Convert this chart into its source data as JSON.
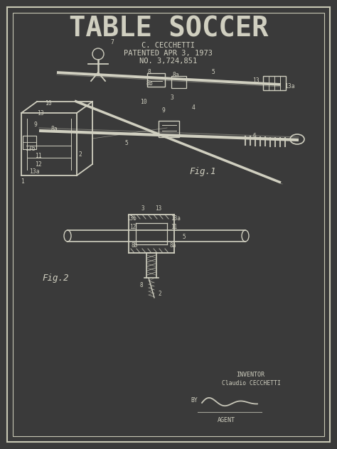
{
  "bg_color": "#3a3a3a",
  "border_color": "#c8c8b4",
  "line_color": "#d0cfc0",
  "title": "TABLE SOCCER",
  "inventor_line": "C. CECCHETTI",
  "patent_line": "PATENTED APR 3, 1973",
  "number_line": "NO. 3,724,851",
  "fig1_label": "Fig.1",
  "fig2_label": "Fig.2",
  "inventor_label": "INVENTOR",
  "inventor_name": "Claudio CECCHETTI",
  "by_label": "BY",
  "agent_label": "AGENT",
  "title_fontsize": 28,
  "subtitle_fontsize": 7.5,
  "label_fontsize": 6.5,
  "fig_fontsize": 9
}
